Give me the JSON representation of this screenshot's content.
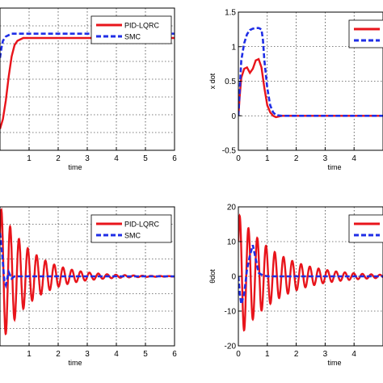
{
  "colors": {
    "pid": "#e8141b",
    "smc": "#1f2ee6"
  },
  "chart_data": [
    {
      "type": "line",
      "xlabel": "time",
      "ylabel": "",
      "xlim": [
        0,
        6
      ],
      "ylim": [
        0,
        1.0
      ],
      "xticks": [
        "1",
        "2",
        "3",
        "4",
        "5",
        "6"
      ],
      "yticks": [],
      "grid": true,
      "legend_position": "top-right",
      "series": [
        {
          "name": "PID-LQRC",
          "style": "solid",
          "x": [
            0,
            0.1,
            0.2,
            0.3,
            0.4,
            0.5,
            0.6,
            0.8,
            1.0,
            1.5,
            2,
            3,
            4,
            5,
            6
          ],
          "y": [
            0.15,
            0.22,
            0.35,
            0.52,
            0.66,
            0.74,
            0.77,
            0.79,
            0.79,
            0.79,
            0.79,
            0.79,
            0.79,
            0.79,
            0.79
          ]
        },
        {
          "name": "SMC",
          "style": "dashed",
          "x": [
            0,
            0.05,
            0.1,
            0.2,
            0.3,
            0.4,
            0.5,
            0.7,
            1.0,
            1.5,
            2,
            3,
            4,
            5,
            6
          ],
          "y": [
            0.65,
            0.72,
            0.77,
            0.8,
            0.81,
            0.82,
            0.82,
            0.82,
            0.82,
            0.82,
            0.82,
            0.82,
            0.82,
            0.82,
            0.82
          ]
        }
      ]
    },
    {
      "type": "line",
      "xlabel": "time",
      "ylabel": "x dot",
      "xlim": [
        0,
        5
      ],
      "ylim": [
        -0.5,
        1.5
      ],
      "xticks": [
        "0",
        "1",
        "2",
        "3",
        "4"
      ],
      "yticks": [
        "-0.5",
        "0",
        "0.5",
        "1",
        "1.5"
      ],
      "grid": true,
      "legend_position": "top-right",
      "series": [
        {
          "name": "PID-LQRC",
          "style": "solid",
          "x": [
            0,
            0.05,
            0.1,
            0.2,
            0.3,
            0.4,
            0.5,
            0.6,
            0.7,
            0.8,
            0.9,
            1.0,
            1.1,
            1.2,
            1.3,
            1.5,
            2,
            3,
            4,
            5
          ],
          "y": [
            0.0,
            0.3,
            0.55,
            0.68,
            0.7,
            0.62,
            0.68,
            0.8,
            0.82,
            0.7,
            0.4,
            0.15,
            0.05,
            0.0,
            -0.02,
            0.0,
            0.0,
            0.0,
            0.0,
            0.0
          ]
        },
        {
          "name": "SMC",
          "style": "dashed",
          "x": [
            0,
            0.05,
            0.1,
            0.2,
            0.3,
            0.4,
            0.5,
            0.6,
            0.7,
            0.8,
            0.85,
            0.9,
            1.0,
            1.1,
            1.2,
            1.3,
            1.5,
            2,
            3,
            4,
            5
          ],
          "y": [
            0.0,
            0.4,
            0.8,
            1.05,
            1.18,
            1.24,
            1.26,
            1.27,
            1.27,
            1.25,
            1.1,
            0.8,
            0.4,
            0.15,
            0.05,
            0.01,
            0.0,
            0.0,
            0.0,
            0.0,
            0.0
          ]
        }
      ]
    },
    {
      "type": "line",
      "xlabel": "time",
      "ylabel": "",
      "xlim": [
        0,
        6
      ],
      "ylim": [
        -1.6,
        1.6
      ],
      "xticks": [
        "1",
        "2",
        "3",
        "4",
        "5",
        "6"
      ],
      "yticks": [],
      "grid": true,
      "legend_position": "top-right",
      "series": [
        {
          "name": "PID-LQRC",
          "style": "solid",
          "decay_model": {
            "amplitude": 1.6,
            "frequency_hz": 3.3,
            "decay_rate": 0.95,
            "offset": 0
          }
        },
        {
          "name": "SMC",
          "style": "dashed",
          "x": [
            0,
            0.05,
            0.1,
            0.15,
            0.2,
            0.3,
            0.4,
            0.5,
            0.7,
            1.0,
            2,
            3,
            4,
            5,
            6
          ],
          "y": [
            1.0,
            0.7,
            0.3,
            -0.1,
            -0.2,
            0.1,
            -0.05,
            0.0,
            0.0,
            0.0,
            0.0,
            0.0,
            0.0,
            0.0,
            0.0
          ]
        }
      ]
    },
    {
      "type": "line",
      "xlabel": "time",
      "ylabel": "θdot",
      "xlim": [
        0,
        5
      ],
      "ylim": [
        -20,
        20
      ],
      "xticks": [
        "0",
        "1",
        "2",
        "3",
        "4"
      ],
      "yticks": [
        "-20",
        "-10",
        "0",
        "10",
        "20"
      ],
      "grid": true,
      "legend_position": "top-right",
      "series": [
        {
          "name": "PID-LQRC",
          "style": "solid",
          "decay_model": {
            "amplitude": 18,
            "frequency_hz": 3.3,
            "decay_rate": 0.75,
            "offset": 0
          }
        },
        {
          "name": "SMC",
          "style": "dashed",
          "x": [
            0,
            0.05,
            0.1,
            0.2,
            0.3,
            0.4,
            0.5,
            0.6,
            0.7,
            0.8,
            0.9,
            1.0,
            1.2,
            1.5,
            2,
            3,
            4,
            5
          ],
          "y": [
            0,
            -5,
            -8,
            -5,
            2,
            6,
            9,
            5,
            1,
            0.5,
            0.2,
            0.0,
            0.0,
            0.0,
            0.0,
            0.0,
            0.0,
            0.0
          ]
        }
      ]
    }
  ]
}
